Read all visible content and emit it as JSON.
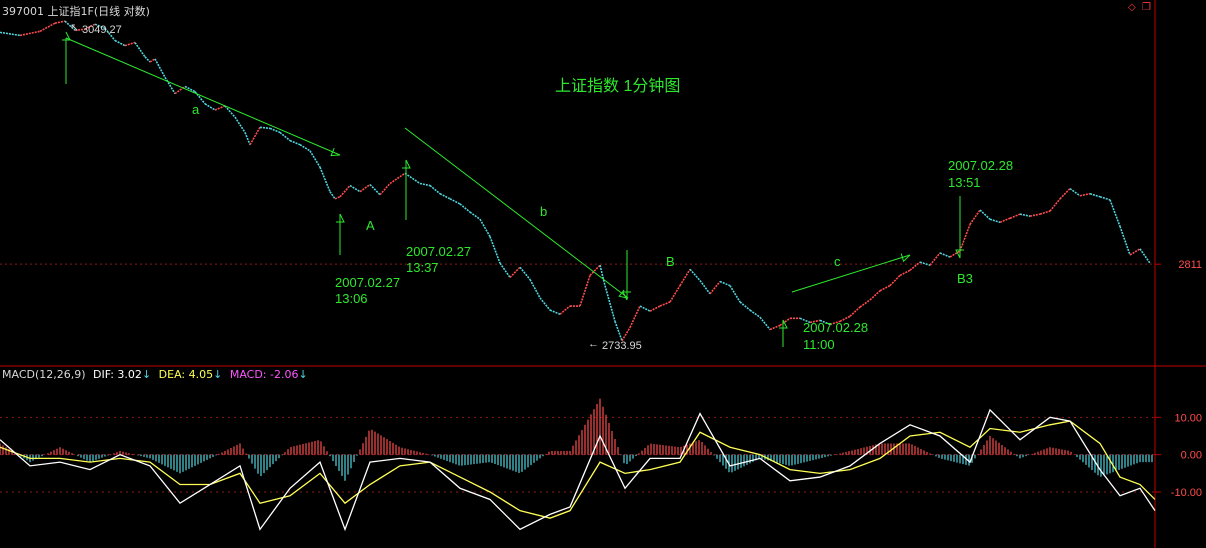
{
  "header": {
    "code": "397001",
    "name": "上证指1F(日线 对数)"
  },
  "macd_header": {
    "label": "MACD(12,26,9)",
    "dif": "DIF: 3.02",
    "dea": "DEA: 4.05",
    "macd": "MACD: -2.06"
  },
  "price": {
    "high_label": "3049.27",
    "low_label": "2733.95",
    "current_label": "2811"
  },
  "macd_ticks": [
    "10.00",
    "0.00",
    "-10.00"
  ],
  "annotations": {
    "title": "上证指数 1分钟图",
    "a": "a",
    "b": "b",
    "c": "c",
    "A": "A",
    "B": "B",
    "B3": "B3",
    "t1_date": "2007.02.27",
    "t1_time": "13:06",
    "t2_date": "2007.02.27",
    "t2_time": "13:37",
    "t3_date": "2007.02.28",
    "t3_time": "11:00",
    "t4_date": "2007.02.28",
    "t4_time": "13:51"
  },
  "colors": {
    "up": "#ff4d4d",
    "down": "#4fd6e0",
    "dif": "#ffffff",
    "dea": "#ffff55",
    "macd": "#ff55ff",
    "annotation": "#2ee82e",
    "border": "#c00000",
    "grid": "#8b1a1a"
  },
  "chart_data": {
    "type": "line",
    "series": [
      {
        "name": "上证指1F",
        "x": [
          0,
          20,
          40,
          55,
          65,
          75,
          85,
          95,
          105,
          115,
          125,
          135,
          145,
          150,
          155,
          165,
          175,
          185,
          195,
          205,
          215,
          225,
          235,
          245,
          250,
          260,
          270,
          280,
          290,
          300,
          310,
          320,
          330,
          335,
          340,
          350,
          360,
          370,
          380,
          390,
          405,
          420,
          430,
          440,
          450,
          460,
          470,
          480,
          490,
          500,
          510,
          520,
          530,
          540,
          550,
          560,
          570,
          580,
          590,
          600,
          605,
          615,
          622,
          630,
          640,
          650,
          660,
          670,
          680,
          690,
          700,
          710,
          720,
          730,
          740,
          750,
          760,
          770,
          780,
          790,
          800,
          810,
          820,
          830,
          840,
          850,
          860,
          870,
          880,
          890,
          900,
          910,
          920,
          930,
          940,
          950,
          960,
          970,
          980,
          990,
          1000,
          1010,
          1020,
          1030,
          1040,
          1050,
          1060,
          1070,
          1080,
          1090,
          1100,
          1110,
          1120,
          1130,
          1140,
          1150
        ],
        "y": [
          3038,
          3035,
          3039,
          3047,
          3049,
          3040,
          3041,
          3046,
          3042,
          3030,
          3025,
          3028,
          3014,
          3009,
          3012,
          2994,
          2978,
          2985,
          2980,
          2968,
          2962,
          2966,
          2955,
          2940,
          2928,
          2945,
          2944,
          2940,
          2932,
          2928,
          2922,
          2906,
          2882,
          2875,
          2877,
          2888,
          2882,
          2889,
          2879,
          2890,
          2900,
          2890,
          2888,
          2880,
          2875,
          2870,
          2862,
          2855,
          2838,
          2812,
          2798,
          2808,
          2796,
          2778,
          2766,
          2762,
          2770,
          2770,
          2800,
          2810,
          2790,
          2755,
          2736,
          2749,
          2770,
          2765,
          2770,
          2774,
          2790,
          2806,
          2795,
          2782,
          2794,
          2790,
          2774,
          2766,
          2759,
          2747,
          2751,
          2758,
          2758,
          2754,
          2756,
          2752,
          2755,
          2760,
          2769,
          2776,
          2785,
          2790,
          2800,
          2805,
          2813,
          2810,
          2822,
          2818,
          2824,
          2850,
          2864,
          2855,
          2852,
          2856,
          2860,
          2858,
          2860,
          2863,
          2875,
          2885,
          2878,
          2880,
          2877,
          2874,
          2848,
          2820,
          2826,
          2812
        ]
      }
    ],
    "macd": {
      "ylim": [
        -25,
        20
      ],
      "ticks": [
        10,
        0,
        -10
      ],
      "x": [
        0,
        30,
        60,
        90,
        120,
        150,
        180,
        210,
        240,
        260,
        290,
        320,
        345,
        370,
        400,
        430,
        460,
        490,
        520,
        550,
        570,
        600,
        625,
        650,
        680,
        700,
        730,
        760,
        790,
        820,
        850,
        880,
        910,
        940,
        970,
        990,
        1020,
        1050,
        1070,
        1100,
        1120,
        1140,
        1155
      ],
      "dif": [
        4,
        -3,
        -2,
        -4,
        0,
        -3,
        -13,
        -8,
        -3,
        -20,
        -9,
        -2,
        -20,
        -2,
        -1,
        -2,
        -9,
        -12,
        -20,
        -16,
        -14,
        5,
        -9,
        -1,
        -1,
        11,
        -3,
        -1,
        -7,
        -6,
        -3,
        3,
        8,
        5,
        -2,
        12,
        4,
        10,
        9,
        -4,
        -11,
        -9,
        -15
      ],
      "dea": [
        2,
        -1,
        -1,
        -2,
        -1,
        -2,
        -8,
        -8,
        -5,
        -13,
        -11,
        -5,
        -13,
        -8,
        -3,
        -2,
        -6,
        -10,
        -15,
        -17,
        -15,
        -2,
        -5,
        -4,
        -2,
        6,
        2,
        0,
        -4,
        -5,
        -4,
        -1,
        5,
        6,
        2,
        7,
        6,
        8,
        9,
        3,
        -6,
        -8,
        -12
      ],
      "hist": [
        3,
        -2,
        2,
        -2,
        1,
        -1,
        -5,
        -1,
        3,
        -6,
        2,
        4,
        -7,
        7,
        2,
        0,
        -3,
        -2,
        -5,
        1,
        1,
        15,
        -3,
        3,
        2,
        4,
        -5,
        -1,
        -3,
        -1,
        1,
        3,
        3,
        -1,
        -3,
        5,
        -1,
        2,
        1,
        -6,
        -4,
        -2,
        -2
      ]
    }
  }
}
